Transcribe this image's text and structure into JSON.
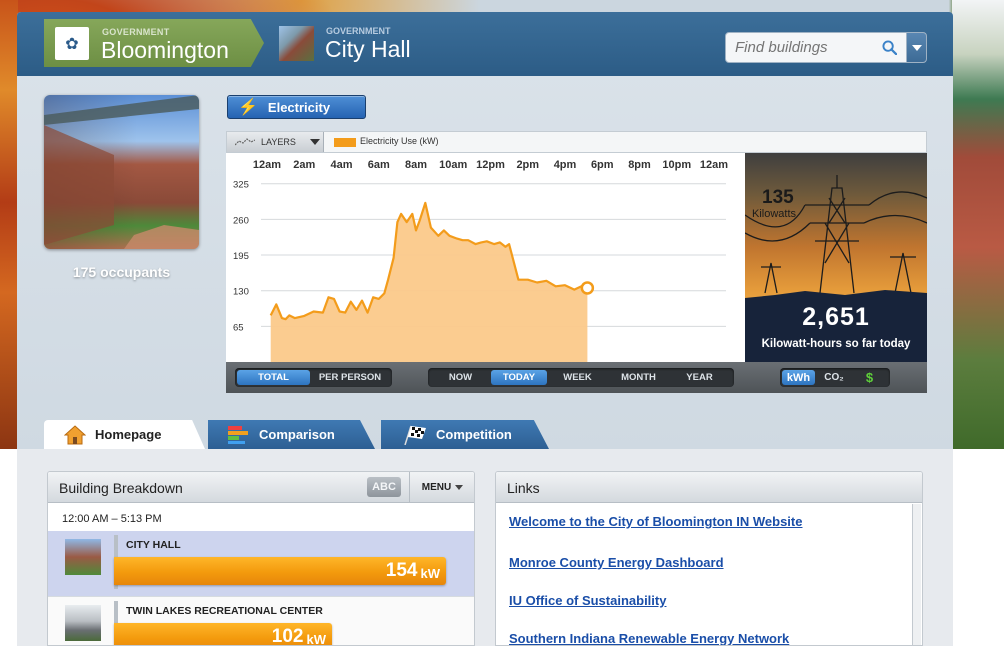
{
  "header": {
    "breadcrumb": [
      {
        "category": "GOVERNMENT",
        "name": "Bloomington"
      },
      {
        "category": "GOVERNMENT",
        "name": "City Hall"
      }
    ],
    "search_placeholder": "Find buildings"
  },
  "building": {
    "occupants": "175 occupants"
  },
  "resource_button": "Electricity",
  "chart": {
    "layers_label": "LAYERS",
    "legend": "Electricity Use  (kW)"
  },
  "chart_data": {
    "type": "area",
    "x_tick_labels": [
      "12am",
      "2am",
      "4am",
      "6am",
      "8am",
      "10am",
      "12pm",
      "2pm",
      "4pm",
      "6pm",
      "8pm",
      "10pm",
      "12am"
    ],
    "y_ticks": [
      65,
      130,
      195,
      260,
      325
    ],
    "ylim": [
      0,
      330
    ],
    "xlim_hours": [
      0,
      24
    ],
    "series": [
      {
        "name": "Electricity Use  (kW)",
        "x_hours": [
          0.2,
          0.5,
          0.8,
          1.0,
          1.2,
          1.5,
          2.0,
          2.5,
          3.0,
          3.3,
          3.6,
          3.9,
          4.2,
          4.5,
          4.8,
          5.1,
          5.4,
          5.7,
          6.0,
          6.3,
          6.5,
          6.8,
          7.0,
          7.2,
          7.5,
          7.8,
          8.0,
          8.2,
          8.5,
          8.8,
          9.2,
          9.5,
          9.8,
          10.2,
          10.5,
          10.8,
          11.2,
          11.5,
          11.8,
          12.2,
          12.5,
          12.8,
          13.0,
          13.5,
          14.0,
          14.5,
          15.0,
          15.5,
          16.0,
          16.5,
          17.0,
          17.2
        ],
        "values": [
          85,
          105,
          80,
          78,
          85,
          80,
          84,
          92,
          90,
          118,
          115,
          92,
          90,
          110,
          95,
          112,
          90,
          118,
          115,
          125,
          150,
          190,
          255,
          270,
          255,
          270,
          240,
          258,
          290,
          245,
          230,
          240,
          230,
          225,
          222,
          222,
          215,
          218,
          220,
          215,
          218,
          210,
          215,
          150,
          150,
          145,
          148,
          138,
          140,
          132,
          140,
          135
        ]
      }
    ]
  },
  "power_panel": {
    "current_value": "135",
    "current_unit": "Kilowatts",
    "total": "2,651",
    "caption": "Kilowatt-hours so far today"
  },
  "controls": {
    "mode": [
      "TOTAL",
      "PER PERSON"
    ],
    "mode_selected": "TOTAL",
    "range": [
      "NOW",
      "TODAY",
      "WEEK",
      "MONTH",
      "YEAR"
    ],
    "range_selected": "TODAY",
    "units": [
      "kWh",
      "CO₂",
      "$"
    ],
    "unit_selected": "kWh"
  },
  "tabs": [
    {
      "label": "Homepage",
      "active": true
    },
    {
      "label": "Comparison",
      "active": false
    },
    {
      "label": "Competition",
      "active": false
    }
  ],
  "breakdown": {
    "title": "Building Breakdown",
    "abc_label": "ABC",
    "menu_label": "MENU",
    "range": "12:00 AM – 5:13 PM",
    "rows": [
      {
        "name": "CITY HALL",
        "value": "154",
        "unit": "kW",
        "fraction": 0.79
      },
      {
        "name": "TWIN LAKES RECREATIONAL CENTER",
        "value": "102",
        "unit": "kW",
        "fraction": 0.52
      }
    ]
  },
  "links": {
    "title": "Links",
    "items": [
      "Welcome to the City of Bloomington IN Website",
      "Monroe County Energy Dashboard",
      "IU Office of Sustainability",
      "Southern Indiana Renewable Energy Network"
    ]
  },
  "colors": {
    "series": "#f39c1b",
    "series_fill": "#fbc98a",
    "header": "#2f6089",
    "accent_green": "#7a9b4f"
  }
}
